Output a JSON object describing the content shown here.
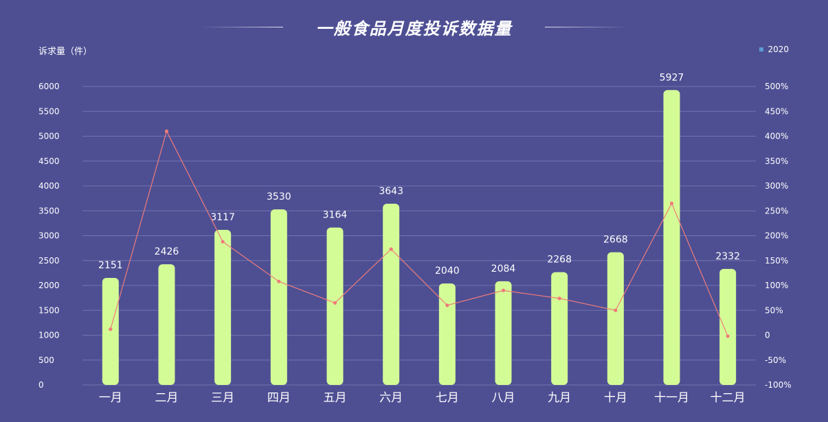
{
  "chart_data": {
    "type": "bar",
    "title": "一般食品月度投诉数据量",
    "ylabel": "诉求量（件）",
    "categories": [
      "一月",
      "二月",
      "三月",
      "四月",
      "五月",
      "六月",
      "七月",
      "八月",
      "九月",
      "十月",
      "十一月",
      "十二月"
    ],
    "series": [
      {
        "name": "2020",
        "type": "bar",
        "values": [
          2151,
          2426,
          3117,
          3530,
          3164,
          3643,
          2040,
          2084,
          2268,
          2668,
          5927,
          2332
        ],
        "color": "#d4fc96"
      },
      {
        "type": "line",
        "axis": "right",
        "values": [
          12,
          410,
          188,
          108,
          65,
          173,
          60,
          90,
          74,
          50,
          265,
          -2
        ],
        "color": "#f07b7b"
      }
    ],
    "y_left": {
      "min": 0,
      "max": 6000,
      "ticks": [
        0,
        500,
        1000,
        1500,
        2000,
        2500,
        3000,
        3500,
        4000,
        4500,
        5000,
        5500,
        6000
      ]
    },
    "y_right": {
      "min": -100,
      "max": 500,
      "ticks": [
        "-100%",
        "-50%",
        "0",
        "50%",
        "100%",
        "150%",
        "200%",
        "250%",
        "300%",
        "350%",
        "400%",
        "450%",
        "500%"
      ]
    },
    "legend": {
      "position": "top-right",
      "entries": [
        "2020"
      ]
    },
    "grid": true,
    "colors": {
      "background": "#4e4f93",
      "grid": "#7273ae",
      "bar": "#d4fc96",
      "line": "#f07b7b",
      "legend_marker": "#5b9bd5"
    }
  }
}
